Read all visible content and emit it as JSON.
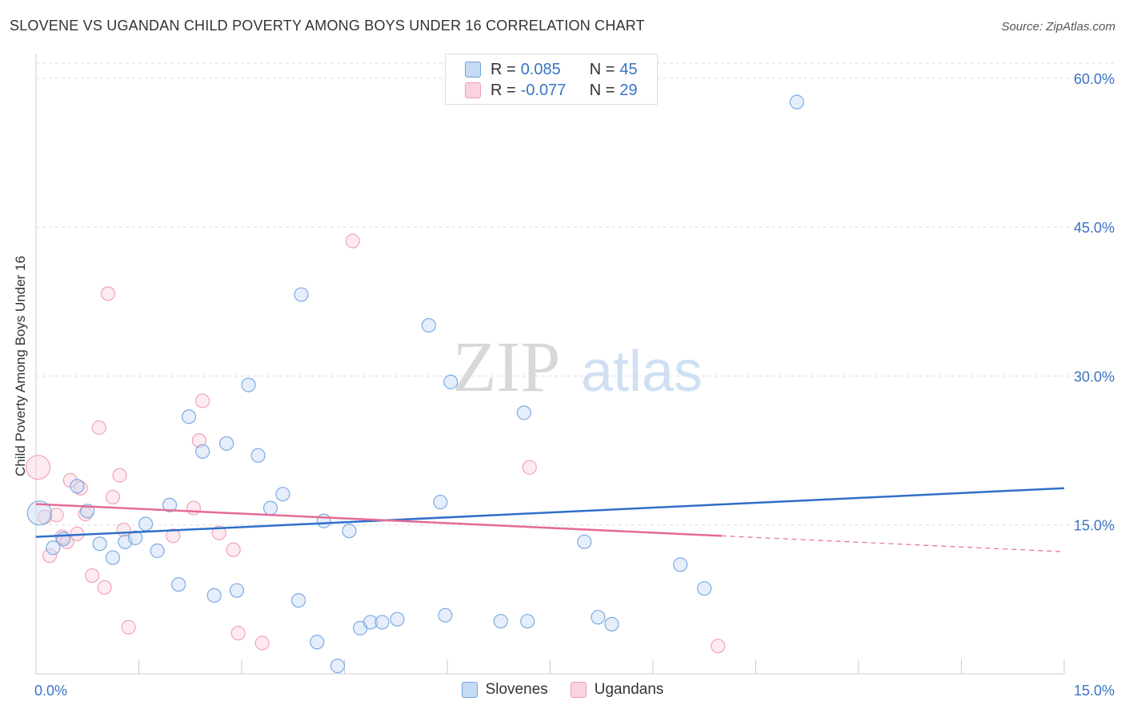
{
  "header": {
    "title": "SLOVENE VS UGANDAN CHILD POVERTY AMONG BOYS UNDER 16 CORRELATION CHART",
    "source": "Source: ZipAtlas.com"
  },
  "watermark": {
    "zip": "ZIP",
    "atlas": "atlas"
  },
  "legend_top": {
    "r_label": "R =",
    "n_label": "N =",
    "series": [
      {
        "r": "0.085",
        "n": "45"
      },
      {
        "r": "-0.077",
        "n": "29"
      }
    ]
  },
  "chart_data": {
    "type": "scatter",
    "title": "SLOVENE VS UGANDAN CHILD POVERTY AMONG BOYS UNDER 16 CORRELATION CHART",
    "xlabel": "",
    "ylabel": "Child Poverty Among Boys Under 16",
    "xlim": [
      0,
      15
    ],
    "ylim": [
      0,
      62
    ],
    "x_tick_labels": [
      "0.0%",
      "15.0%"
    ],
    "y_ticks": [
      15,
      30,
      45,
      60
    ],
    "y_tick_labels": [
      "15.0%",
      "30.0%",
      "45.0%",
      "60.0%"
    ],
    "grid": "horizontal dashed",
    "legend": "bottom-center",
    "colors": {
      "Slovenes": "#6fa3e0",
      "Ugandans": "#ef9ab5",
      "slovenes_line": "#2f6fc9",
      "ugandans_line": "#e56b94"
    },
    "series": [
      {
        "name": "Slovenes",
        "r": 0.085,
        "n": 45,
        "trend": {
          "x": [
            0,
            15
          ],
          "y": [
            13.8,
            18.7
          ]
        },
        "points": [
          {
            "x": 0.05,
            "y": 16.2,
            "big": true
          },
          {
            "x": 0.25,
            "y": 12.7
          },
          {
            "x": 0.4,
            "y": 13.6
          },
          {
            "x": 0.6,
            "y": 18.9
          },
          {
            "x": 0.75,
            "y": 16.4
          },
          {
            "x": 0.93,
            "y": 13.1
          },
          {
            "x": 1.12,
            "y": 11.7
          },
          {
            "x": 1.3,
            "y": 13.3
          },
          {
            "x": 1.45,
            "y": 13.7
          },
          {
            "x": 1.6,
            "y": 15.1
          },
          {
            "x": 1.77,
            "y": 12.4
          },
          {
            "x": 1.95,
            "y": 17.0
          },
          {
            "x": 2.08,
            "y": 9.0
          },
          {
            "x": 2.23,
            "y": 25.9
          },
          {
            "x": 2.43,
            "y": 22.4
          },
          {
            "x": 2.6,
            "y": 7.9
          },
          {
            "x": 2.78,
            "y": 23.2
          },
          {
            "x": 2.93,
            "y": 8.4
          },
          {
            "x": 3.1,
            "y": 29.1
          },
          {
            "x": 3.24,
            "y": 22.0
          },
          {
            "x": 3.42,
            "y": 16.7
          },
          {
            "x": 3.6,
            "y": 18.1
          },
          {
            "x": 3.83,
            "y": 7.4
          },
          {
            "x": 3.87,
            "y": 38.2
          },
          {
            "x": 4.1,
            "y": 3.2
          },
          {
            "x": 4.2,
            "y": 15.4
          },
          {
            "x": 4.4,
            "y": 0.8
          },
          {
            "x": 4.57,
            "y": 14.4
          },
          {
            "x": 4.73,
            "y": 4.6
          },
          {
            "x": 4.88,
            "y": 5.2
          },
          {
            "x": 5.05,
            "y": 5.2
          },
          {
            "x": 5.27,
            "y": 5.5
          },
          {
            "x": 5.73,
            "y": 35.1
          },
          {
            "x": 5.9,
            "y": 17.3
          },
          {
            "x": 5.97,
            "y": 5.9
          },
          {
            "x": 6.05,
            "y": 29.4
          },
          {
            "x": 6.78,
            "y": 5.3
          },
          {
            "x": 7.12,
            "y": 26.3
          },
          {
            "x": 7.17,
            "y": 5.3
          },
          {
            "x": 8.0,
            "y": 13.3
          },
          {
            "x": 8.2,
            "y": 5.7
          },
          {
            "x": 8.4,
            "y": 5.0
          },
          {
            "x": 9.4,
            "y": 11.0
          },
          {
            "x": 9.75,
            "y": 8.6
          },
          {
            "x": 11.1,
            "y": 57.6
          }
        ]
      },
      {
        "name": "Ugandans",
        "r": -0.077,
        "n": 29,
        "trend": {
          "x": [
            0,
            10
          ],
          "y": [
            17.1,
            13.9
          ]
        },
        "trend_dashed": {
          "x": [
            10,
            15
          ],
          "y": [
            13.9,
            12.3
          ]
        },
        "points": [
          {
            "x": 0.03,
            "y": 20.8,
            "big": true
          },
          {
            "x": 0.13,
            "y": 15.8
          },
          {
            "x": 0.2,
            "y": 11.9
          },
          {
            "x": 0.3,
            "y": 16.0
          },
          {
            "x": 0.38,
            "y": 13.8
          },
          {
            "x": 0.45,
            "y": 13.3
          },
          {
            "x": 0.5,
            "y": 19.5
          },
          {
            "x": 0.6,
            "y": 14.1
          },
          {
            "x": 0.65,
            "y": 18.7
          },
          {
            "x": 0.72,
            "y": 16.1
          },
          {
            "x": 0.82,
            "y": 9.9
          },
          {
            "x": 0.92,
            "y": 24.8
          },
          {
            "x": 1.0,
            "y": 8.7
          },
          {
            "x": 1.05,
            "y": 38.3
          },
          {
            "x": 1.12,
            "y": 17.8
          },
          {
            "x": 1.22,
            "y": 20.0
          },
          {
            "x": 1.28,
            "y": 14.5
          },
          {
            "x": 1.35,
            "y": 4.7
          },
          {
            "x": 2.0,
            "y": 13.9
          },
          {
            "x": 2.3,
            "y": 16.7
          },
          {
            "x": 2.38,
            "y": 23.5
          },
          {
            "x": 2.43,
            "y": 27.5
          },
          {
            "x": 2.67,
            "y": 14.2
          },
          {
            "x": 2.88,
            "y": 12.5
          },
          {
            "x": 2.95,
            "y": 4.1
          },
          {
            "x": 3.3,
            "y": 3.1
          },
          {
            "x": 4.62,
            "y": 43.6
          },
          {
            "x": 7.2,
            "y": 20.8
          },
          {
            "x": 9.95,
            "y": 2.8
          }
        ]
      }
    ]
  }
}
